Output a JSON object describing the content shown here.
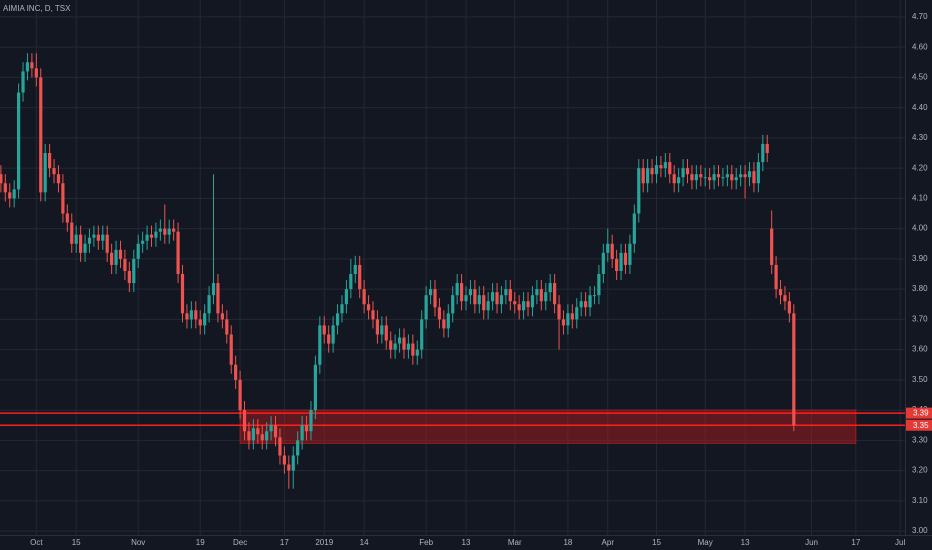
{
  "chart_data": {
    "type": "candlestick",
    "title": "AIMIA INC, D, TSX",
    "up_color": "#26a69a",
    "down_color": "#ef5350",
    "zone_color": "#b71c1c",
    "xlim": [
      -0.2,
      204.1
    ],
    "ylim": [
      2.987,
      4.756
    ],
    "xticks": [
      {
        "value": 8,
        "label": "Oct"
      },
      {
        "value": 17,
        "label": "15"
      },
      {
        "value": 31,
        "label": "Nov"
      },
      {
        "value": 45,
        "label": "19"
      },
      {
        "value": 54,
        "label": "Dec"
      },
      {
        "value": 64,
        "label": "17"
      },
      {
        "value": 73,
        "label": "2019"
      },
      {
        "value": 82,
        "label": "14"
      },
      {
        "value": 96,
        "label": "Feb"
      },
      {
        "value": 105,
        "label": "13"
      },
      {
        "value": 116,
        "label": "Mar"
      },
      {
        "value": 128,
        "label": "18"
      },
      {
        "value": 137,
        "label": "Apr"
      },
      {
        "value": 148,
        "label": "15"
      },
      {
        "value": 159,
        "label": "May"
      },
      {
        "value": 168,
        "label": "13"
      },
      {
        "value": 183,
        "label": "Jun"
      },
      {
        "value": 193,
        "label": "17"
      },
      {
        "value": 203,
        "label": "Jul"
      }
    ],
    "yticks": [
      {
        "value": 3.0,
        "label": "3.00"
      },
      {
        "value": 3.1,
        "label": "3.10"
      },
      {
        "value": 3.2,
        "label": "3.20"
      },
      {
        "value": 3.3,
        "label": "3.30"
      },
      {
        "value": 3.4,
        "label": "3.40"
      },
      {
        "value": 3.5,
        "label": "3.50"
      },
      {
        "value": 3.6,
        "label": "3.60"
      },
      {
        "value": 3.7,
        "label": "3.70"
      },
      {
        "value": 3.8,
        "label": "3.80"
      },
      {
        "value": 3.9,
        "label": "3.90"
      },
      {
        "value": 4.0,
        "label": "4.00"
      },
      {
        "value": 4.1,
        "label": "4.10"
      },
      {
        "value": 4.2,
        "label": "4.20"
      },
      {
        "value": 4.3,
        "label": "4.30"
      },
      {
        "value": 4.4,
        "label": "4.40"
      },
      {
        "value": 4.5,
        "label": "4.50"
      },
      {
        "value": 4.6,
        "label": "4.60"
      },
      {
        "value": 4.7,
        "label": "4.70"
      }
    ],
    "grid": true,
    "zone": {
      "low": 3.29,
      "high": 3.4,
      "x_from": 54,
      "x_to": 193
    },
    "price_lines": [
      3.39,
      3.35
    ],
    "open": [
      4.18,
      4.15,
      4.12,
      4.1,
      4.13,
      4.45,
      4.52,
      4.55,
      4.53,
      4.5,
      4.12,
      4.25,
      4.2,
      4.18,
      4.15,
      4.05,
      4.02,
      3.95,
      3.98,
      3.92,
      3.95,
      3.97,
      3.98,
      3.96,
      3.98,
      3.92,
      3.88,
      3.93,
      3.9,
      3.86,
      3.82,
      3.9,
      3.95,
      3.96,
      3.98,
      3.97,
      3.99,
      4.0,
      3.98,
      4.0,
      3.99,
      3.85,
      3.72,
      3.7,
      3.73,
      3.7,
      3.68,
      3.72,
      3.78,
      3.82,
      3.72,
      3.7,
      3.65,
      3.55,
      3.5,
      3.4,
      3.33,
      3.3,
      3.34,
      3.32,
      3.3,
      3.33,
      3.35,
      3.31,
      3.25,
      3.22,
      3.2,
      3.25,
      3.3,
      3.35,
      3.33,
      3.4,
      3.55,
      3.68,
      3.65,
      3.62,
      3.68,
      3.72,
      3.75,
      3.8,
      3.85,
      3.88,
      3.8,
      3.75,
      3.73,
      3.7,
      3.65,
      3.68,
      3.63,
      3.6,
      3.62,
      3.64,
      3.6,
      3.62,
      3.58,
      3.6,
      3.7,
      3.78,
      3.8,
      3.74,
      3.7,
      3.67,
      3.72,
      3.78,
      3.82,
      3.76,
      3.78,
      3.8,
      3.75,
      3.78,
      3.73,
      3.76,
      3.79,
      3.75,
      3.78,
      3.8,
      3.76,
      3.75,
      3.73,
      3.76,
      3.74,
      3.78,
      3.8,
      3.76,
      3.79,
      3.82,
      3.75,
      3.7,
      3.68,
      3.72,
      3.7,
      3.74,
      3.76,
      3.74,
      3.78,
      3.78,
      3.85,
      3.92,
      3.95,
      3.9,
      3.86,
      3.92,
      3.88,
      3.95,
      4.05,
      4.2,
      4.15,
      4.2,
      4.18,
      4.21,
      4.2,
      4.22,
      4.18,
      4.15,
      4.17,
      4.2,
      4.18,
      4.16,
      4.18,
      4.17,
      4.17,
      4.16,
      4.18,
      4.17,
      4.17,
      4.18,
      4.16,
      4.17,
      4.18,
      4.17,
      4.19,
      4.15,
      4.22,
      4.28,
      4.0,
      3.88,
      3.8,
      3.78,
      3.76,
      3.72
    ],
    "high": [
      4.21,
      4.18,
      4.15,
      4.16,
      4.48,
      4.55,
      4.58,
      4.58,
      4.58,
      4.53,
      4.28,
      4.28,
      4.23,
      4.21,
      4.18,
      4.08,
      4.05,
      4.01,
      4.01,
      3.98,
      4.0,
      4.01,
      4.01,
      4.01,
      4.01,
      3.95,
      3.96,
      3.96,
      3.93,
      3.89,
      3.93,
      3.98,
      3.99,
      4.01,
      4.01,
      4.02,
      4.03,
      4.08,
      4.03,
      4.03,
      4.02,
      3.88,
      3.75,
      3.76,
      3.76,
      3.73,
      3.75,
      3.81,
      4.18,
      3.85,
      3.75,
      3.73,
      3.68,
      3.58,
      3.53,
      3.43,
      3.36,
      3.37,
      3.37,
      3.35,
      3.36,
      3.38,
      3.38,
      3.34,
      3.28,
      3.25,
      3.28,
      3.33,
      3.38,
      3.38,
      3.43,
      3.58,
      3.71,
      3.71,
      3.68,
      3.71,
      3.75,
      3.78,
      3.83,
      3.9,
      3.91,
      3.91,
      3.83,
      3.78,
      3.76,
      3.73,
      3.71,
      3.71,
      3.66,
      3.65,
      3.67,
      3.67,
      3.65,
      3.65,
      3.63,
      3.73,
      3.81,
      3.83,
      3.83,
      3.77,
      3.73,
      3.75,
      3.81,
      3.85,
      3.85,
      3.81,
      3.83,
      3.83,
      3.81,
      3.81,
      3.79,
      3.82,
      3.82,
      3.81,
      3.83,
      3.83,
      3.79,
      3.78,
      3.79,
      3.79,
      3.81,
      3.83,
      3.83,
      3.82,
      3.85,
      3.85,
      3.78,
      3.73,
      3.75,
      3.75,
      3.77,
      3.79,
      3.79,
      3.81,
      3.81,
      3.88,
      3.95,
      4.0,
      3.98,
      3.93,
      3.95,
      3.95,
      3.98,
      4.08,
      4.23,
      4.23,
      4.23,
      4.23,
      4.24,
      4.24,
      4.25,
      4.25,
      4.21,
      4.2,
      4.23,
      4.23,
      4.21,
      4.21,
      4.21,
      4.2,
      4.2,
      4.21,
      4.21,
      4.2,
      4.21,
      4.21,
      4.2,
      4.21,
      4.21,
      4.22,
      4.22,
      4.25,
      4.31,
      4.31,
      4.06,
      3.91,
      3.83,
      3.81,
      3.79,
      3.75
    ],
    "low": [
      4.12,
      4.09,
      4.07,
      4.07,
      4.1,
      4.42,
      4.49,
      4.5,
      4.47,
      4.09,
      4.09,
      4.17,
      4.15,
      4.12,
      4.02,
      3.99,
      3.92,
      3.92,
      3.89,
      3.89,
      3.92,
      3.94,
      3.93,
      3.93,
      3.89,
      3.85,
      3.85,
      3.87,
      3.83,
      3.79,
      3.79,
      3.87,
      3.92,
      3.93,
      3.94,
      3.94,
      3.96,
      3.95,
      3.95,
      3.96,
      3.82,
      3.69,
      3.67,
      3.67,
      3.67,
      3.65,
      3.65,
      3.69,
      3.75,
      3.69,
      3.67,
      3.62,
      3.52,
      3.47,
      3.37,
      3.3,
      3.27,
      3.27,
      3.29,
      3.27,
      3.27,
      3.3,
      3.28,
      3.22,
      3.19,
      3.14,
      3.14,
      3.22,
      3.27,
      3.3,
      3.3,
      3.37,
      3.52,
      3.62,
      3.59,
      3.59,
      3.65,
      3.69,
      3.72,
      3.77,
      3.82,
      3.77,
      3.72,
      3.7,
      3.67,
      3.62,
      3.62,
      3.6,
      3.57,
      3.57,
      3.59,
      3.57,
      3.57,
      3.55,
      3.55,
      3.57,
      3.67,
      3.75,
      3.71,
      3.67,
      3.64,
      3.64,
      3.69,
      3.75,
      3.73,
      3.73,
      3.75,
      3.72,
      3.72,
      3.7,
      3.7,
      3.73,
      3.72,
      3.72,
      3.75,
      3.73,
      3.72,
      3.7,
      3.7,
      3.71,
      3.71,
      3.75,
      3.73,
      3.73,
      3.76,
      3.72,
      3.6,
      3.65,
      3.65,
      3.67,
      3.67,
      3.71,
      3.71,
      3.71,
      3.75,
      3.75,
      3.82,
      3.89,
      3.87,
      3.83,
      3.83,
      3.85,
      3.85,
      3.92,
      4.02,
      4.12,
      4.12,
      4.15,
      4.15,
      4.17,
      4.17,
      4.15,
      4.12,
      4.12,
      4.14,
      4.15,
      4.13,
      4.13,
      4.14,
      4.14,
      4.13,
      4.13,
      4.14,
      4.14,
      4.14,
      4.13,
      4.13,
      4.14,
      4.1,
      4.14,
      4.12,
      4.12,
      4.19,
      4.22,
      3.85,
      3.77,
      3.75,
      3.73,
      3.69,
      3.33
    ],
    "close": [
      4.15,
      4.12,
      4.1,
      4.13,
      4.45,
      4.52,
      4.55,
      4.53,
      4.5,
      4.12,
      4.25,
      4.2,
      4.18,
      4.15,
      4.05,
      4.02,
      3.95,
      3.98,
      3.92,
      3.95,
      3.97,
      3.98,
      3.96,
      3.98,
      3.92,
      3.88,
      3.93,
      3.9,
      3.86,
      3.82,
      3.9,
      3.95,
      3.96,
      3.98,
      3.97,
      3.99,
      4.0,
      3.98,
      4.0,
      3.99,
      3.85,
      3.72,
      3.7,
      3.73,
      3.7,
      3.68,
      3.72,
      3.78,
      3.82,
      3.72,
      3.7,
      3.65,
      3.55,
      3.5,
      3.4,
      3.33,
      3.3,
      3.34,
      3.32,
      3.3,
      3.33,
      3.35,
      3.31,
      3.25,
      3.22,
      3.2,
      3.25,
      3.3,
      3.35,
      3.33,
      3.4,
      3.55,
      3.68,
      3.65,
      3.62,
      3.68,
      3.72,
      3.75,
      3.8,
      3.85,
      3.88,
      3.8,
      3.75,
      3.73,
      3.7,
      3.65,
      3.68,
      3.63,
      3.6,
      3.62,
      3.64,
      3.6,
      3.62,
      3.58,
      3.6,
      3.7,
      3.78,
      3.8,
      3.74,
      3.7,
      3.67,
      3.72,
      3.78,
      3.82,
      3.76,
      3.78,
      3.8,
      3.75,
      3.78,
      3.73,
      3.76,
      3.79,
      3.75,
      3.78,
      3.8,
      3.76,
      3.75,
      3.73,
      3.76,
      3.74,
      3.78,
      3.8,
      3.76,
      3.79,
      3.82,
      3.75,
      3.7,
      3.68,
      3.72,
      3.7,
      3.74,
      3.76,
      3.74,
      3.78,
      3.78,
      3.85,
      3.92,
      3.95,
      3.9,
      3.86,
      3.92,
      3.88,
      3.95,
      4.05,
      4.2,
      4.15,
      4.2,
      4.18,
      4.21,
      4.2,
      4.22,
      4.18,
      4.15,
      4.17,
      4.2,
      4.18,
      4.16,
      4.18,
      4.17,
      4.17,
      4.16,
      4.18,
      4.17,
      4.17,
      4.18,
      4.16,
      4.17,
      4.18,
      4.17,
      4.19,
      4.15,
      4.22,
      4.28,
      4.25,
      3.88,
      3.8,
      3.78,
      3.76,
      3.72,
      3.35
    ]
  }
}
